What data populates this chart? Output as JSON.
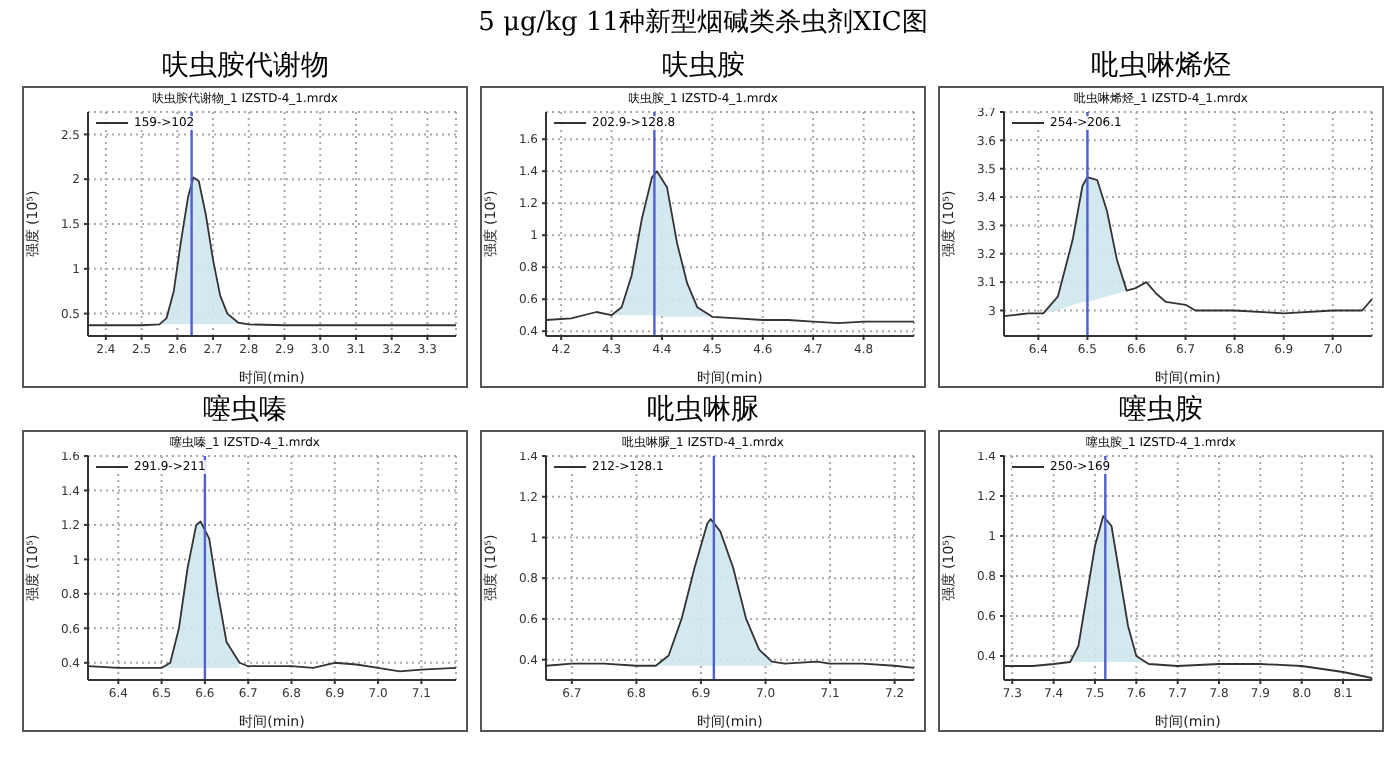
{
  "chart_data": [
    {
      "type": "line",
      "title": "呋虫胺代谢物",
      "subtitle": "呋虫胺代谢物_1 IZSTD-4_1.mrdx",
      "annotations": [
        "5 μg/kg 11种新型烟碱类杀虫剂XIC图"
      ],
      "xlabel": "时间(min)",
      "ylabel": "强度 (10⁵)",
      "legend": "top left",
      "grid": true,
      "marker": "none",
      "xlim": [
        2.35,
        3.38
      ],
      "xticks": [
        2.4,
        2.5,
        2.6,
        2.7,
        2.8,
        2.9,
        {
          "value": 3,
          "label": "3.0"
        },
        3.1,
        3.2,
        3.3
      ],
      "ylim": [
        0.25,
        2.75
      ],
      "yticks": [
        0.5,
        1,
        1.5,
        2,
        2.5
      ],
      "ref_lines": [
        {
          "axis": "x",
          "value": 2.64,
          "color": "#5060d0"
        }
      ],
      "series": [
        {
          "name": "159->102",
          "color": "#333333",
          "x": [
            2.35,
            2.5,
            2.55,
            2.57,
            2.59,
            2.61,
            2.63,
            2.645,
            2.66,
            2.68,
            2.7,
            2.72,
            2.74,
            2.77,
            2.8,
            2.9,
            3.38
          ],
          "values": [
            0.37,
            0.37,
            0.38,
            0.45,
            0.75,
            1.3,
            1.8,
            2.02,
            1.98,
            1.6,
            1.1,
            0.7,
            0.5,
            0.4,
            0.38,
            0.37,
            0.37
          ],
          "lower": [
            null,
            null,
            0.38,
            0.38,
            0.38,
            0.38,
            0.38,
            0.38,
            0.38,
            0.38,
            0.38,
            0.38,
            0.38,
            0.38,
            0.38,
            null,
            null
          ],
          "upper": [
            null,
            null,
            0.38,
            0.45,
            0.75,
            1.3,
            1.8,
            2.02,
            1.98,
            1.6,
            1.1,
            0.7,
            0.5,
            0.4,
            0.38,
            null,
            null
          ]
        }
      ]
    },
    {
      "type": "line",
      "title": "呋虫胺",
      "subtitle": "呋虫胺_1 IZSTD-4_1.mrdx",
      "xlabel": "时间(min)",
      "ylabel": "强度 (10⁵)",
      "legend": "top left",
      "grid": true,
      "marker": "none",
      "xlim": [
        4.17,
        4.9
      ],
      "xticks": [
        4.2,
        4.3,
        4.4,
        4.5,
        4.6,
        4.7,
        4.8
      ],
      "ylim": [
        0.37,
        1.77
      ],
      "yticks": [
        0.4,
        0.6,
        0.8,
        1,
        1.2,
        1.4,
        1.6
      ],
      "ref_lines": [
        {
          "axis": "x",
          "value": 4.385,
          "color": "#5060d0"
        }
      ],
      "series": [
        {
          "name": "202.9->128.8",
          "color": "#333333",
          "x": [
            4.17,
            4.22,
            4.27,
            4.3,
            4.32,
            4.34,
            4.36,
            4.38,
            4.39,
            4.41,
            4.43,
            4.45,
            4.47,
            4.5,
            4.55,
            4.6,
            4.65,
            4.7,
            4.75,
            4.8,
            4.85,
            4.9
          ],
          "values": [
            0.47,
            0.48,
            0.52,
            0.5,
            0.55,
            0.75,
            1.1,
            1.36,
            1.4,
            1.3,
            0.95,
            0.7,
            0.55,
            0.49,
            0.48,
            0.47,
            0.47,
            0.46,
            0.45,
            0.46,
            0.46,
            0.46
          ],
          "lower": [
            null,
            null,
            null,
            0.5,
            0.5,
            0.5,
            0.5,
            0.5,
            0.5,
            0.49,
            0.49,
            0.49,
            0.49,
            0.49,
            null,
            null,
            null,
            null,
            null,
            null,
            null,
            null
          ],
          "upper": [
            null,
            null,
            null,
            0.5,
            0.55,
            0.75,
            1.1,
            1.36,
            1.4,
            1.3,
            0.95,
            0.7,
            0.55,
            0.49,
            null,
            null,
            null,
            null,
            null,
            null,
            null,
            null
          ]
        }
      ]
    },
    {
      "type": "line",
      "title": "吡虫啉烯烃",
      "subtitle": "吡虫啉烯烃_1 IZSTD-4_1.mrdx",
      "xlabel": "时间(min)",
      "ylabel": "强度 (10⁵)",
      "legend": "top left",
      "grid": true,
      "marker": "none",
      "xlim": [
        6.33,
        7.08
      ],
      "xticks": [
        6.4,
        6.5,
        6.6,
        6.7,
        6.8,
        6.9,
        {
          "value": 7,
          "label": "7.0"
        }
      ],
      "ylim": [
        2.91,
        3.7
      ],
      "yticks": [
        3,
        3.1,
        3.2,
        3.3,
        3.4,
        3.5,
        3.6,
        3.7
      ],
      "ref_lines": [
        {
          "axis": "x",
          "value": 6.5,
          "color": "#5060d0"
        }
      ],
      "series": [
        {
          "name": "254->206.1",
          "color": "#333333",
          "x": [
            6.33,
            6.38,
            6.41,
            6.44,
            6.47,
            6.49,
            6.5,
            6.52,
            6.54,
            6.56,
            6.58,
            6.6,
            6.62,
            6.64,
            6.66,
            6.7,
            6.72,
            6.8,
            6.9,
            7,
            7.06,
            7.08
          ],
          "values": [
            2.98,
            2.99,
            2.99,
            3.05,
            3.25,
            3.44,
            3.47,
            3.46,
            3.35,
            3.18,
            3.07,
            3.08,
            3.1,
            3.06,
            3.03,
            3.02,
            3,
            3,
            2.99,
            3,
            3,
            3.04
          ],
          "lower": [
            null,
            null,
            2.99,
            3.0,
            3.02,
            3.03,
            3.03,
            3.04,
            3.05,
            3.06,
            3.07,
            null,
            null,
            null,
            null,
            null,
            null,
            null,
            null,
            null,
            null,
            null
          ],
          "upper": [
            null,
            null,
            2.99,
            3.05,
            3.25,
            3.44,
            3.47,
            3.46,
            3.35,
            3.18,
            3.07,
            null,
            null,
            null,
            null,
            null,
            null,
            null,
            null,
            null,
            null,
            null
          ]
        }
      ]
    },
    {
      "type": "line",
      "title": "噻虫嗪",
      "subtitle": "噻虫嗪_1 IZSTD-4_1.mrdx",
      "xlabel": "时间(min)",
      "ylabel": "强度 (10⁵)",
      "legend": "top left",
      "grid": true,
      "marker": "none",
      "xlim": [
        6.33,
        7.18
      ],
      "xticks": [
        6.4,
        6.5,
        6.6,
        6.7,
        6.8,
        6.9,
        {
          "value": 7,
          "label": "7.0"
        },
        7.1
      ],
      "ylim": [
        0.3,
        1.6
      ],
      "yticks": [
        0.4,
        0.6,
        0.8,
        1,
        1.2,
        1.4,
        1.6
      ],
      "ref_lines": [
        {
          "axis": "x",
          "value": 6.6,
          "color": "#5060d0"
        }
      ],
      "series": [
        {
          "name": "291.9->211",
          "color": "#333333",
          "x": [
            6.33,
            6.4,
            6.5,
            6.52,
            6.54,
            6.56,
            6.58,
            6.59,
            6.61,
            6.63,
            6.65,
            6.68,
            6.7,
            6.8,
            6.85,
            6.9,
            6.95,
            7,
            7.05,
            7.1,
            7.18
          ],
          "values": [
            0.38,
            0.37,
            0.37,
            0.4,
            0.6,
            0.95,
            1.2,
            1.22,
            1.12,
            0.8,
            0.52,
            0.4,
            0.38,
            0.38,
            0.37,
            0.4,
            0.39,
            0.37,
            0.35,
            0.36,
            0.37
          ],
          "lower": [
            null,
            null,
            0.37,
            0.37,
            0.37,
            0.37,
            0.37,
            0.37,
            0.37,
            0.37,
            0.37,
            0.37,
            null,
            null,
            null,
            null,
            null,
            null,
            null,
            null,
            null
          ],
          "upper": [
            null,
            null,
            0.37,
            0.4,
            0.6,
            0.95,
            1.2,
            1.22,
            1.12,
            0.8,
            0.52,
            0.4,
            null,
            null,
            null,
            null,
            null,
            null,
            null,
            null,
            null
          ]
        }
      ]
    },
    {
      "type": "line",
      "title": "吡虫啉脲",
      "subtitle": "吡虫啉脲_1 IZSTD-4_1.mrdx",
      "xlabel": "时间(min)",
      "ylabel": "强度 (10⁵)",
      "legend": "top left",
      "grid": true,
      "marker": "none",
      "xlim": [
        6.66,
        7.23
      ],
      "xticks": [
        6.7,
        6.8,
        6.9,
        {
          "value": 7,
          "label": "7.0"
        },
        7.1,
        7.2
      ],
      "ylim": [
        0.3,
        1.4
      ],
      "yticks": [
        0.4,
        0.6,
        0.8,
        1,
        1.2,
        1.4
      ],
      "ref_lines": [
        {
          "axis": "x",
          "value": 6.92,
          "color": "#5060d0"
        }
      ],
      "series": [
        {
          "name": "212->128.1",
          "color": "#333333",
          "x": [
            6.66,
            6.7,
            6.75,
            6.8,
            6.83,
            6.85,
            6.87,
            6.89,
            6.91,
            6.915,
            6.93,
            6.95,
            6.97,
            6.99,
            7.01,
            7.03,
            7.08,
            7.1,
            7.15,
            7.2,
            7.23
          ],
          "values": [
            0.37,
            0.38,
            0.38,
            0.37,
            0.37,
            0.42,
            0.6,
            0.85,
            1.07,
            1.09,
            1.03,
            0.85,
            0.6,
            0.45,
            0.39,
            0.38,
            0.39,
            0.38,
            0.38,
            0.37,
            0.36
          ],
          "lower": [
            null,
            null,
            null,
            null,
            0.37,
            0.37,
            0.37,
            0.37,
            0.37,
            0.37,
            0.37,
            0.37,
            0.37,
            0.37,
            0.37,
            null,
            null,
            null,
            null,
            null,
            null
          ],
          "upper": [
            null,
            null,
            null,
            null,
            0.37,
            0.42,
            0.6,
            0.85,
            1.07,
            1.09,
            1.03,
            0.85,
            0.6,
            0.45,
            0.39,
            null,
            null,
            null,
            null,
            null,
            null
          ]
        }
      ]
    },
    {
      "type": "line",
      "title": "噻虫胺",
      "subtitle": "噻虫胺_1 IZSTD-4_1.mrdx",
      "xlabel": "时间(min)",
      "ylabel": "强度 (10⁵)",
      "legend": "top left",
      "grid": true,
      "marker": "none",
      "xlim": [
        7.28,
        8.17
      ],
      "xticks": [
        7.3,
        7.4,
        7.5,
        7.6,
        7.7,
        7.8,
        7.9,
        {
          "value": 8,
          "label": "8.0"
        },
        8.1
      ],
      "ylim": [
        0.28,
        1.4
      ],
      "yticks": [
        0.4,
        0.6,
        0.8,
        1,
        1.2,
        1.4
      ],
      "ref_lines": [
        {
          "axis": "x",
          "value": 7.525,
          "color": "#5060d0"
        }
      ],
      "series": [
        {
          "name": "250->169",
          "color": "#333333",
          "x": [
            7.28,
            7.35,
            7.4,
            7.44,
            7.46,
            7.48,
            7.5,
            7.52,
            7.54,
            7.56,
            7.58,
            7.6,
            7.63,
            7.7,
            7.8,
            7.9,
            8,
            8.1,
            8.17
          ],
          "values": [
            0.35,
            0.35,
            0.36,
            0.37,
            0.45,
            0.7,
            0.95,
            1.1,
            1.05,
            0.8,
            0.55,
            0.4,
            0.36,
            0.35,
            0.36,
            0.36,
            0.35,
            0.32,
            0.29
          ],
          "lower": [
            null,
            null,
            null,
            0.37,
            0.37,
            0.37,
            0.37,
            0.37,
            0.37,
            0.37,
            0.37,
            0.37,
            0.36,
            null,
            null,
            null,
            null,
            null,
            null
          ],
          "upper": [
            null,
            null,
            null,
            0.37,
            0.45,
            0.7,
            0.95,
            1.1,
            1.05,
            0.8,
            0.55,
            0.4,
            0.36,
            null,
            null,
            null,
            null,
            null,
            null
          ]
        }
      ]
    }
  ]
}
